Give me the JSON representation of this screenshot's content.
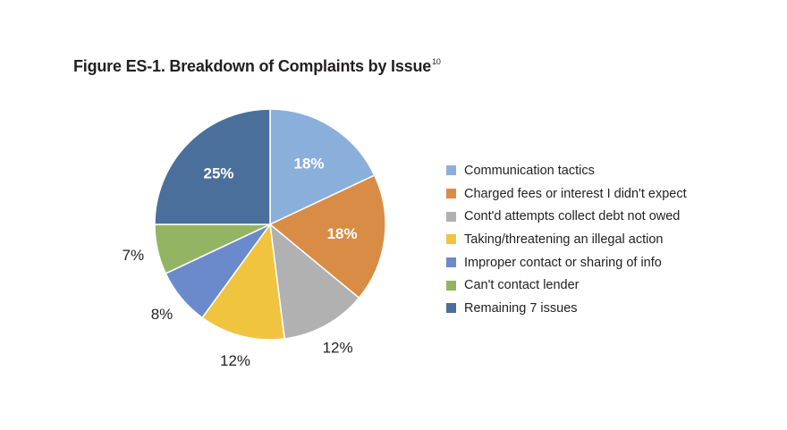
{
  "title": {
    "text": "Figure ES-1. Breakdown of Complaints by Issue",
    "superscript": "10"
  },
  "chart_data": {
    "type": "pie",
    "title": "Figure ES-1. Breakdown of Complaints by Issue",
    "start_angle_deg": 0,
    "direction": "clockwise",
    "legend_position": "right",
    "slices": [
      {
        "label": "Communication tactics",
        "value": 18,
        "display": "18%",
        "color": "#8aafdb",
        "label_inside": true,
        "label_color": "#ffffff"
      },
      {
        "label": "Charged fees or interest I didn't expect",
        "value": 18,
        "display": "18%",
        "color": "#d98c45",
        "label_inside": true,
        "label_color": "#ffffff"
      },
      {
        "label": "Cont'd attempts collect debt not owed",
        "value": 12,
        "display": "12%",
        "color": "#b1b1b1",
        "label_inside": false,
        "label_color": "#231f20"
      },
      {
        "label": "Taking/threatening an illegal action",
        "value": 12,
        "display": "12%",
        "color": "#f0c43e",
        "label_inside": false,
        "label_color": "#231f20"
      },
      {
        "label": "Improper contact or sharing of info",
        "value": 8,
        "display": "8%",
        "color": "#6b8acb",
        "label_inside": false,
        "label_color": "#231f20"
      },
      {
        "label": "Can't contact lender",
        "value": 7,
        "display": "7%",
        "color": "#93b563",
        "label_inside": false,
        "label_color": "#231f20"
      },
      {
        "label": "Remaining 7 issues",
        "value": 25,
        "display": "25%",
        "color": "#4a6f9b",
        "label_inside": true,
        "label_color": "#ffffff"
      }
    ]
  }
}
